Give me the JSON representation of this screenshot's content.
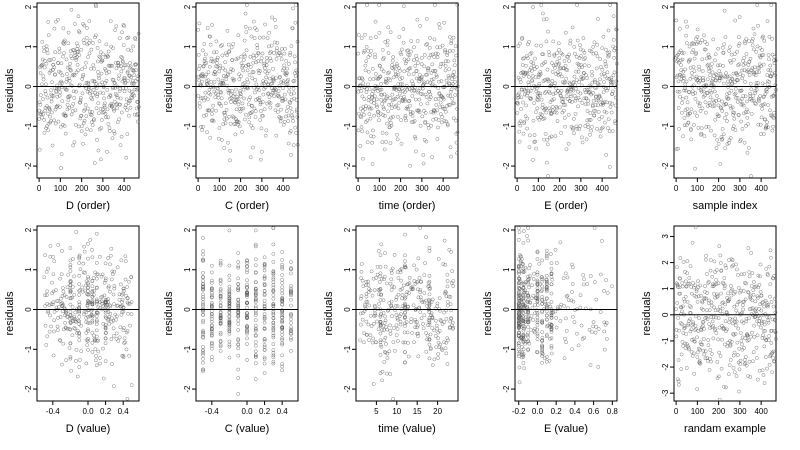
{
  "style": {
    "point_color": "#555555",
    "axis_color": "#000000",
    "zero_line_color": "#000000"
  },
  "chart_data": [
    {
      "type": "scatter",
      "xlabel": "D (order)",
      "ylabel": "residuals",
      "xticks": [
        0,
        100,
        200,
        300,
        400
      ],
      "xtick_labels": [
        "0",
        "100",
        "200",
        "300",
        "400"
      ],
      "xlim": [
        -10,
        470
      ],
      "ylim": [
        -2.3,
        2.1
      ],
      "yticks": [
        -2,
        -1,
        0,
        1,
        2
      ],
      "zero_line": 0,
      "gen": {
        "kind": "order",
        "seed": 11,
        "n": 470
      }
    },
    {
      "type": "scatter",
      "xlabel": "C (order)",
      "ylabel": "residuals",
      "xticks": [
        0,
        100,
        200,
        300,
        400
      ],
      "xtick_labels": [
        "0",
        "100",
        "200",
        "300",
        "400"
      ],
      "xlim": [
        -10,
        470
      ],
      "ylim": [
        -2.3,
        2.1
      ],
      "yticks": [
        -2,
        -1,
        0,
        1,
        2
      ],
      "zero_line": 0,
      "gen": {
        "kind": "order",
        "seed": 23,
        "n": 470
      }
    },
    {
      "type": "scatter",
      "xlabel": "time (order)",
      "ylabel": "residuals",
      "xticks": [
        0,
        100,
        200,
        300,
        400
      ],
      "xtick_labels": [
        "0",
        "100",
        "200",
        "300",
        "400"
      ],
      "xlim": [
        -10,
        470
      ],
      "ylim": [
        -2.3,
        2.1
      ],
      "yticks": [
        -2,
        -1,
        0,
        1,
        2
      ],
      "zero_line": 0,
      "gen": {
        "kind": "order",
        "seed": 37,
        "n": 470
      }
    },
    {
      "type": "scatter",
      "xlabel": "E (order)",
      "ylabel": "residuals",
      "xticks": [
        0,
        100,
        200,
        300,
        400
      ],
      "xtick_labels": [
        "0",
        "100",
        "200",
        "300",
        "400"
      ],
      "xlim": [
        -10,
        470
      ],
      "ylim": [
        -2.3,
        2.1
      ],
      "yticks": [
        -2,
        -1,
        0,
        1,
        2
      ],
      "zero_line": 0,
      "gen": {
        "kind": "order",
        "seed": 41,
        "n": 470
      }
    },
    {
      "type": "scatter",
      "xlabel": "sample index",
      "ylabel": "residuals",
      "xticks": [
        0,
        100,
        200,
        300,
        400
      ],
      "xtick_labels": [
        "0",
        "100",
        "200",
        "300",
        "400"
      ],
      "xlim": [
        -10,
        470
      ],
      "ylim": [
        -2.3,
        2.1
      ],
      "yticks": [
        -2,
        -1,
        0,
        1,
        2
      ],
      "zero_line": 0,
      "gen": {
        "kind": "order",
        "seed": 53,
        "n": 470
      }
    },
    {
      "type": "scatter",
      "xlabel": "D (value)",
      "ylabel": "residuals",
      "xticks": [
        -0.4,
        0.0,
        0.2,
        0.4
      ],
      "xtick_labels": [
        "-0.4",
        "0.0",
        "0.2",
        "0.4"
      ],
      "xlim": [
        -0.58,
        0.58
      ],
      "ylim": [
        -2.3,
        2.1
      ],
      "yticks": [
        -2,
        -1,
        0,
        1,
        2
      ],
      "zero_line": 0,
      "gen": {
        "kind": "uniform",
        "seed": 61,
        "n": 300,
        "min": -0.5,
        "max": 0.5,
        "levels": [
          -0.2,
          -0.1,
          0.0,
          0.05,
          0.1,
          0.2
        ],
        "n_levels": 20
      }
    },
    {
      "type": "scatter",
      "xlabel": "C (value)",
      "ylabel": "residuals",
      "xticks": [
        -0.4,
        0.0,
        0.2,
        0.4
      ],
      "xtick_labels": [
        "-0.4",
        "0.0",
        "0.2",
        "0.4"
      ],
      "xlim": [
        -0.58,
        0.58
      ],
      "ylim": [
        -2.3,
        2.1
      ],
      "yticks": [
        -2,
        -1,
        0,
        1,
        2
      ],
      "zero_line": 0,
      "gen": {
        "kind": "levels",
        "seed": 71,
        "n": 470,
        "levels": [
          -0.5,
          -0.4,
          -0.3,
          -0.2,
          -0.1,
          0.0,
          0.1,
          0.2,
          0.3,
          0.4,
          0.5
        ],
        "jitter": 0
      }
    },
    {
      "type": "scatter",
      "xlabel": "time (value)",
      "ylabel": "residuals",
      "xticks": [
        5,
        10,
        15,
        20
      ],
      "xtick_labels": [
        "5",
        "10",
        "15",
        "20"
      ],
      "xlim": [
        0,
        25
      ],
      "ylim": [
        -2.3,
        2.1
      ],
      "yticks": [
        -2,
        -1,
        0,
        1,
        2
      ],
      "zero_line": 0,
      "gen": {
        "kind": "uniform",
        "seed": 83,
        "n": 330,
        "min": 1,
        "max": 24,
        "levels": [
          6,
          12,
          18
        ],
        "n_levels": 20
      }
    },
    {
      "type": "scatter",
      "xlabel": "E (value)",
      "ylabel": "residuals",
      "xticks": [
        -0.2,
        0.0,
        0.2,
        0.4,
        0.6,
        0.8
      ],
      "xtick_labels": [
        "-0.2",
        "0.0",
        "0.2",
        "0.4",
        "0.6",
        "0.8"
      ],
      "xlim": [
        -0.24,
        0.85
      ],
      "ylim": [
        -2.3,
        2.1
      ],
      "yticks": [
        -2,
        -1,
        0,
        1,
        2
      ],
      "zero_line": 0,
      "gen": {
        "kind": "skew",
        "seed": 97,
        "n": 470,
        "min": -0.2,
        "max": 0.8,
        "levels": [
          -0.2,
          -0.15,
          -0.1,
          0.0,
          0.05,
          0.1,
          0.15
        ],
        "n_levels": 30
      }
    },
    {
      "type": "scatter",
      "xlabel": "randam example",
      "ylabel": "residuals",
      "xticks": [
        0,
        100,
        200,
        300,
        400
      ],
      "xtick_labels": [
        "0",
        "100",
        "200",
        "300",
        "400"
      ],
      "xlim": [
        -10,
        470
      ],
      "ylim": [
        -3.3,
        3.4
      ],
      "yticks": [
        -3,
        -2,
        -1,
        0,
        1,
        2,
        3
      ],
      "zero_line": 0,
      "gen": {
        "kind": "order",
        "seed": 101,
        "n": 470,
        "sd": 1.2
      }
    }
  ]
}
